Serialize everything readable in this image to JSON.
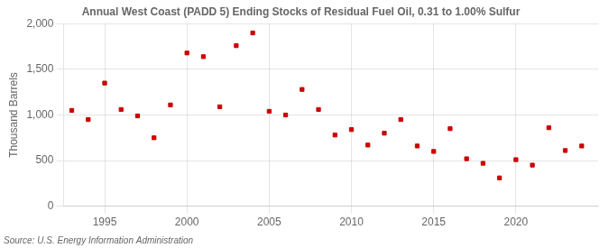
{
  "chart_data": {
    "type": "scatter",
    "title": "Annual West Coast (PADD 5) Ending Stocks of Residual Fuel Oil, 0.31 to 1.00% Sulfur",
    "ylabel": "Thousand Barrels",
    "source": "Source: U.S. Energy Information Administration",
    "color": "#cc0000",
    "marker": "square",
    "grid": true,
    "xlim": [
      1992.5,
      2025
    ],
    "xticks": [
      1995,
      2000,
      2005,
      2010,
      2015,
      2020
    ],
    "ylim": [
      0,
      2000
    ],
    "yticks": [
      0,
      500,
      {
        "value": 1000,
        "label": "1,000"
      },
      {
        "value": 1500,
        "label": "1,500"
      },
      {
        "value": 2000,
        "label": "2,000"
      }
    ],
    "x": [
      1993,
      1994,
      1995,
      1996,
      1997,
      1998,
      1999,
      2000,
      2001,
      2002,
      2003,
      2004,
      2005,
      2006,
      2007,
      2008,
      2009,
      2010,
      2011,
      2012,
      2013,
      2014,
      2015,
      2016,
      2017,
      2018,
      2019,
      2020,
      2021,
      2022,
      2023,
      2024
    ],
    "values": [
      1050,
      950,
      1350,
      1060,
      990,
      750,
      1110,
      1680,
      1640,
      1090,
      1760,
      1900,
      1040,
      1000,
      1280,
      1060,
      780,
      840,
      670,
      800,
      950,
      660,
      600,
      850,
      520,
      470,
      310,
      510,
      450,
      860,
      610,
      660
    ]
  }
}
